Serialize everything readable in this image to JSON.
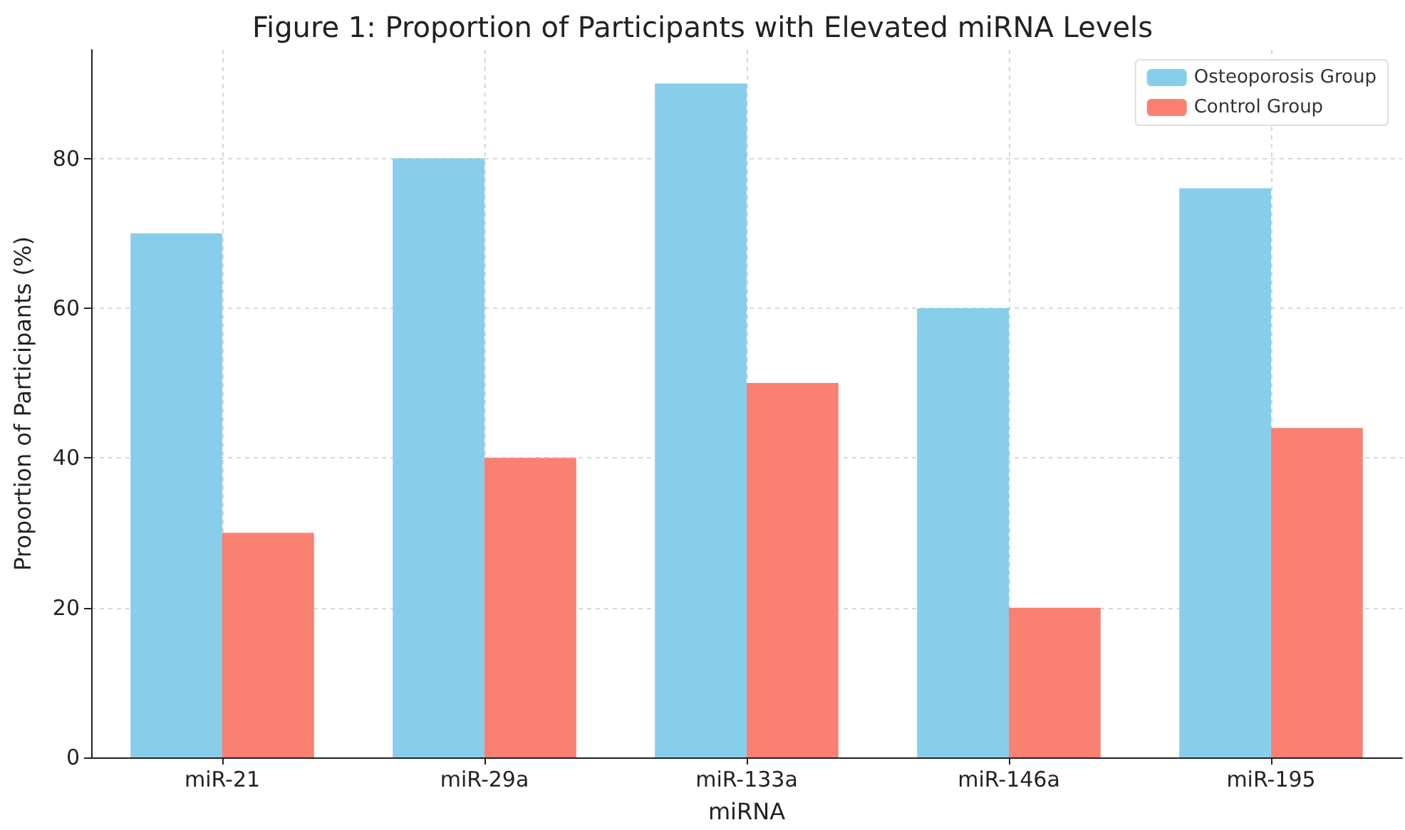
{
  "chart_data": {
    "type": "bar",
    "title": "Figure 1: Proportion of Participants with Elevated miRNA Levels",
    "xlabel": "miRNA",
    "ylabel": "Proportion of Participants (%)",
    "categories": [
      "miR-21",
      "miR-29a",
      "miR-133a",
      "miR-146a",
      "miR-195"
    ],
    "series": [
      {
        "name": "Osteoporosis Group",
        "color": "#87ceeb",
        "values": [
          70,
          80,
          90,
          60,
          76
        ]
      },
      {
        "name": "Control Group",
        "color": "#fa8072",
        "values": [
          30,
          40,
          50,
          20,
          44
        ]
      }
    ],
    "ylim": [
      0,
      94.5
    ],
    "yticks": [
      0,
      20,
      40,
      60,
      80
    ],
    "grid": true,
    "legend": "top right"
  }
}
